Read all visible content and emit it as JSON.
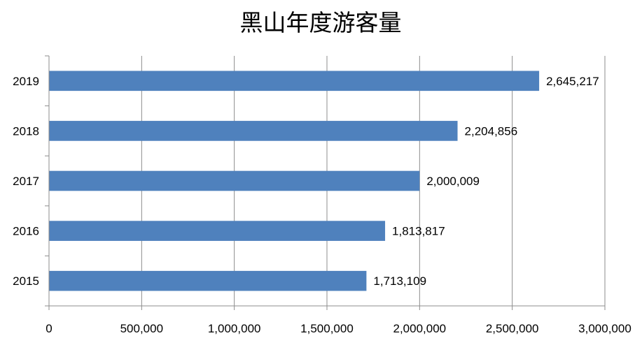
{
  "chart_data": {
    "type": "bar",
    "orientation": "horizontal",
    "title": "黑山年度游客量",
    "categories": [
      "2015",
      "2016",
      "2017",
      "2018",
      "2019"
    ],
    "values": [
      1713109,
      1813817,
      2000009,
      2204856,
      2645217
    ],
    "value_labels": [
      "1,713,109",
      "1,813,817",
      "2,000,009",
      "2,204,856",
      "2,645,217"
    ],
    "xlim": [
      0,
      3000000
    ],
    "x_ticks": [
      0,
      500000,
      1000000,
      1500000,
      2000000,
      2500000,
      3000000
    ],
    "x_tick_labels": [
      "0",
      "500,000",
      "1,000,000",
      "1,500,000",
      "2,000,000",
      "2,500,000",
      "3,000,000"
    ],
    "xlabel": "",
    "ylabel": "",
    "grid": "vertical",
    "legend": "none",
    "colors": {
      "bar": "#4F81BD",
      "grid": "#8C8C8C",
      "axis": "#8C8C8C",
      "text": "#000000"
    }
  }
}
